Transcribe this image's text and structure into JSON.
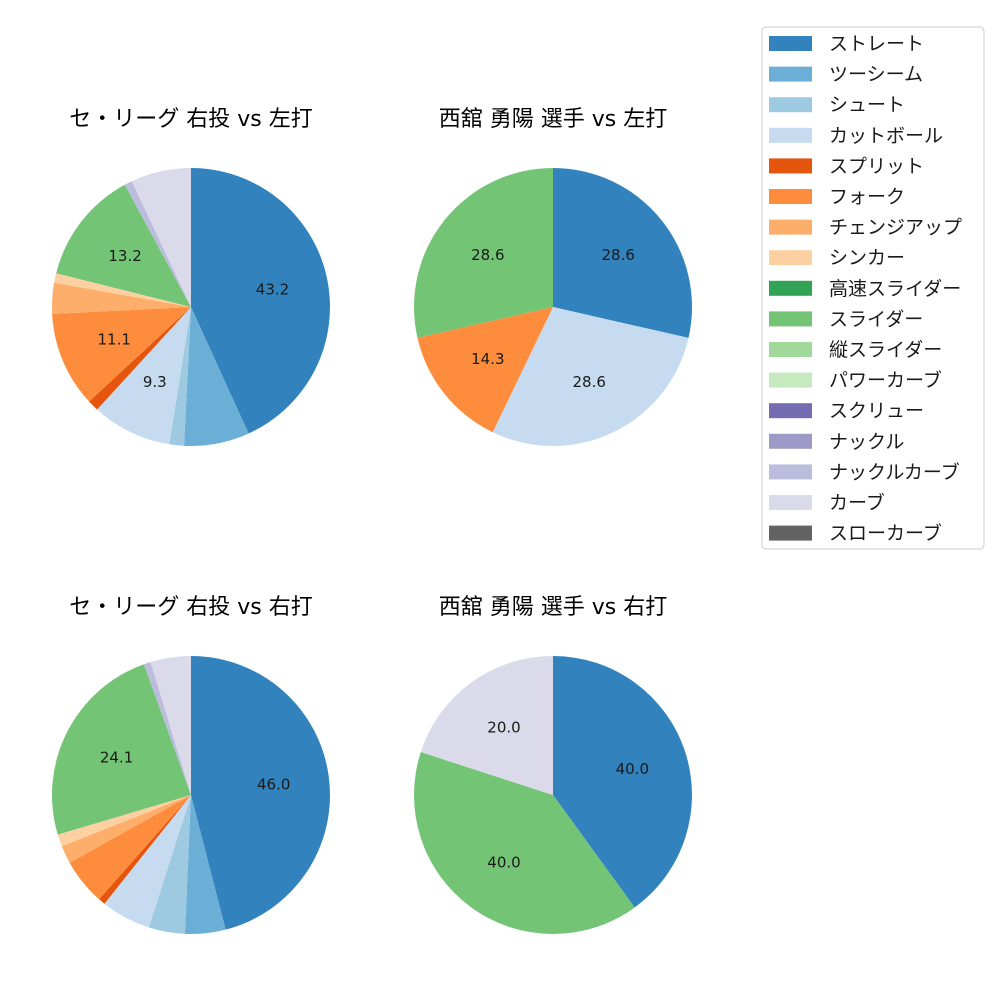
{
  "colors": {
    "ストレート": "#3182bd",
    "ツーシーム": "#6baed6",
    "シュート": "#9ecae1",
    "カットボール": "#c6dbef",
    "スプリット": "#e6550d",
    "フォーク": "#fd8d3c",
    "チェンジアップ": "#fdae6b",
    "シンカー": "#fdd0a2",
    "高速スライダー": "#31a354",
    "スライダー": "#74c476",
    "縦スライダー": "#a1d99b",
    "パワーカーブ": "#c7e9c0",
    "スクリュー": "#756bb1",
    "ナックル": "#9e9ac8",
    "ナックルカーブ": "#bcbddc",
    "カーブ": "#dadaeb",
    "スローカーブ": "#636363"
  },
  "legend": {
    "items": [
      "ストレート",
      "ツーシーム",
      "シュート",
      "カットボール",
      "スプリット",
      "フォーク",
      "チェンジアップ",
      "シンカー",
      "高速スライダー",
      "スライダー",
      "縦スライダー",
      "パワーカーブ",
      "スクリュー",
      "ナックル",
      "ナックルカーブ",
      "カーブ",
      "スローカーブ"
    ]
  },
  "chart_data": [
    {
      "type": "pie",
      "title": "セ・リーグ 右投 vs 左打",
      "slices": [
        {
          "name": "ストレート",
          "value": 43.2,
          "label": "43.2"
        },
        {
          "name": "ツーシーム",
          "value": 7.6,
          "label": ""
        },
        {
          "name": "シュート",
          "value": 1.7,
          "label": ""
        },
        {
          "name": "カットボール",
          "value": 9.3,
          "label": "9.3"
        },
        {
          "name": "スプリット",
          "value": 1.3,
          "label": ""
        },
        {
          "name": "フォーク",
          "value": 11.1,
          "label": "11.1"
        },
        {
          "name": "チェンジアップ",
          "value": 3.6,
          "label": ""
        },
        {
          "name": "シンカー",
          "value": 1.1,
          "label": ""
        },
        {
          "name": "スライダー",
          "value": 13.2,
          "label": "13.2"
        },
        {
          "name": "ナックルカーブ",
          "value": 0.9,
          "label": ""
        },
        {
          "name": "カーブ",
          "value": 7.0,
          "label": ""
        }
      ]
    },
    {
      "type": "pie",
      "title": "西舘 勇陽 選手 vs 左打",
      "slices": [
        {
          "name": "ストレート",
          "value": 28.6,
          "label": "28.6"
        },
        {
          "name": "カットボール",
          "value": 28.6,
          "label": "28.6"
        },
        {
          "name": "フォーク",
          "value": 14.3,
          "label": "14.3"
        },
        {
          "name": "スライダー",
          "value": 28.6,
          "label": "28.6"
        }
      ]
    },
    {
      "type": "pie",
      "title": "セ・リーグ 右投 vs 右打",
      "slices": [
        {
          "name": "ストレート",
          "value": 46.0,
          "label": "46.0"
        },
        {
          "name": "ツーシーム",
          "value": 4.7,
          "label": ""
        },
        {
          "name": "シュート",
          "value": 4.2,
          "label": ""
        },
        {
          "name": "カットボール",
          "value": 5.8,
          "label": ""
        },
        {
          "name": "スプリット",
          "value": 0.8,
          "label": ""
        },
        {
          "name": "フォーク",
          "value": 5.4,
          "label": ""
        },
        {
          "name": "チェンジアップ",
          "value": 2.1,
          "label": ""
        },
        {
          "name": "シンカー",
          "value": 1.4,
          "label": ""
        },
        {
          "name": "スライダー",
          "value": 24.1,
          "label": "24.1"
        },
        {
          "name": "ナックルカーブ",
          "value": 0.8,
          "label": ""
        },
        {
          "name": "カーブ",
          "value": 4.7,
          "label": ""
        }
      ]
    },
    {
      "type": "pie",
      "title": "西舘 勇陽 選手 vs 右打",
      "slices": [
        {
          "name": "ストレート",
          "value": 40.0,
          "label": "40.0"
        },
        {
          "name": "スライダー",
          "value": 40.0,
          "label": "40.0"
        },
        {
          "name": "カーブ",
          "value": 20.0,
          "label": "20.0"
        }
      ]
    }
  ]
}
